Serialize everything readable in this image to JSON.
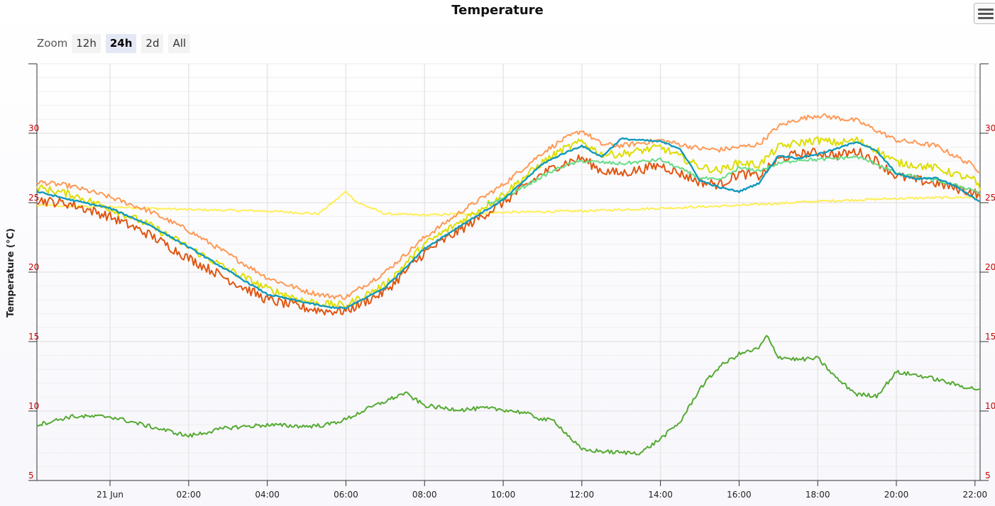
{
  "header": {
    "title": "Temperature",
    "menu_icon": "hamburger-menu-icon"
  },
  "zoom": {
    "label": "Zoom",
    "buttons": [
      "12h",
      "24h",
      "2d",
      "All"
    ],
    "active": "24h"
  },
  "chart_data": {
    "type": "line",
    "title": "Temperature",
    "ylabel": "Temperature (°C)",
    "xlabel": "",
    "ylim": [
      5,
      35
    ],
    "y_ticks": [
      5,
      10,
      15,
      20,
      25,
      30
    ],
    "x_range_hours": [
      -1.86,
      22.13
    ],
    "x_ticks": [
      {
        "label": "21 Jun",
        "hour": 0
      },
      {
        "label": "02:00",
        "hour": 2
      },
      {
        "label": "04:00",
        "hour": 4
      },
      {
        "label": "06:00",
        "hour": 6
      },
      {
        "label": "08:00",
        "hour": 8
      },
      {
        "label": "10:00",
        "hour": 10
      },
      {
        "label": "12:00",
        "hour": 12
      },
      {
        "label": "14:00",
        "hour": 14
      },
      {
        "label": "16:00",
        "hour": 16
      },
      {
        "label": "18:00",
        "hour": 18
      },
      {
        "label": "20:00",
        "hour": 20
      },
      {
        "label": "22:00",
        "hour": 22
      }
    ],
    "grid": true,
    "tick_color": "#cc0000",
    "series": [
      {
        "color": "#ffee55",
        "x": [
          -1.86,
          0,
          2,
          4,
          5.3,
          5.75,
          6,
          6.3,
          7,
          8,
          10,
          12,
          14,
          16,
          18,
          20,
          22,
          22.13
        ],
        "y": [
          24.8,
          24.7,
          24.5,
          24.4,
          24.2,
          25.2,
          25.8,
          25.0,
          24.2,
          24.1,
          24.3,
          24.4,
          24.6,
          24.8,
          25.1,
          25.3,
          25.4,
          25.5
        ]
      },
      {
        "color": "#ff9955",
        "x": [
          -1.86,
          -1,
          0,
          1,
          2,
          3,
          4,
          5,
          5.5,
          6,
          7,
          8,
          9,
          10,
          11,
          11.5,
          12,
          12.5,
          13,
          14,
          15,
          15.5,
          16,
          16.5,
          17,
          17.5,
          18,
          18.5,
          19,
          19.5,
          20,
          21,
          22,
          22.13
        ],
        "y": [
          26.5,
          26.2,
          25.4,
          24.4,
          23.0,
          21.3,
          19.6,
          18.6,
          18.3,
          18.2,
          20.0,
          22.5,
          24.5,
          26.3,
          28.6,
          29.5,
          30.2,
          29.2,
          29.1,
          29.5,
          28.9,
          28.8,
          29.0,
          29.2,
          30.5,
          31.0,
          31.3,
          31.1,
          30.9,
          30.2,
          29.5,
          29.1,
          27.6,
          27.2
        ]
      },
      {
        "color": "#e05510",
        "x": [
          -1.86,
          -1,
          0,
          1,
          2,
          3,
          4,
          5,
          5.5,
          6,
          7,
          8,
          9,
          10,
          11,
          11.5,
          12,
          12.5,
          13,
          14,
          15,
          15.5,
          16,
          16.5,
          17,
          17.5,
          18,
          18.5,
          19,
          19.5,
          20,
          21,
          22,
          22.13
        ],
        "y": [
          25.2,
          24.9,
          24.0,
          22.7,
          21.0,
          19.5,
          18.0,
          17.4,
          17.2,
          17.2,
          18.6,
          21.4,
          23.2,
          25.0,
          27.1,
          27.8,
          28.2,
          27.3,
          27.1,
          27.7,
          26.5,
          26.3,
          27.1,
          26.9,
          28.1,
          28.5,
          28.6,
          28.4,
          28.7,
          28.0,
          26.9,
          26.4,
          25.7,
          25.4
        ]
      },
      {
        "color": "#dddd00",
        "x": [
          -1.86,
          -1,
          0,
          1,
          2,
          3,
          4,
          5,
          5.5,
          6,
          7,
          8,
          9,
          10,
          11,
          11.5,
          12,
          12.5,
          13,
          14,
          15,
          15.5,
          16,
          16.5,
          17,
          17.5,
          18,
          18.5,
          19,
          19.5,
          20,
          21,
          22,
          22.13
        ],
        "y": [
          26.1,
          25.6,
          24.6,
          23.4,
          21.8,
          20.2,
          18.8,
          17.9,
          17.7,
          17.6,
          19.1,
          22.0,
          23.8,
          25.6,
          27.9,
          28.8,
          29.4,
          28.5,
          28.5,
          29.0,
          27.6,
          27.3,
          27.9,
          27.7,
          29.0,
          29.3,
          29.5,
          29.3,
          29.5,
          28.8,
          27.9,
          27.5,
          26.6,
          25.9
        ]
      },
      {
        "color": "#66dd88",
        "x": [
          9.6,
          10,
          11,
          11.5,
          12,
          12.5,
          13,
          14,
          15,
          15.5,
          16,
          16.5,
          17,
          17.5,
          18,
          18.5,
          19,
          19.5,
          20,
          21,
          22,
          22.13
        ],
        "y": [
          24.9,
          25.3,
          26.9,
          27.6,
          28.0,
          27.9,
          27.8,
          28.1,
          26.8,
          26.6,
          27.5,
          27.3,
          27.8,
          28.1,
          28.1,
          28.2,
          28.3,
          27.8,
          27.1,
          26.6,
          25.9,
          25.6
        ]
      },
      {
        "color": "#1199bb",
        "x": [
          -1.86,
          -1,
          0,
          1,
          2,
          3,
          4,
          5,
          5.5,
          6,
          7,
          8,
          9,
          10,
          11,
          11.5,
          12,
          12.5,
          13,
          13.5,
          14,
          14.5,
          15,
          15.5,
          16,
          16.5,
          17,
          17.5,
          18,
          18.5,
          19,
          19.5,
          20,
          20.5,
          21,
          21.5,
          22,
          22.13
        ],
        "y": [
          25.8,
          25.2,
          24.6,
          23.4,
          21.8,
          20.1,
          18.4,
          17.8,
          17.5,
          17.4,
          18.9,
          21.7,
          23.5,
          25.2,
          27.8,
          28.5,
          29.1,
          28.3,
          29.6,
          29.5,
          29.4,
          28.9,
          26.6,
          26.1,
          25.8,
          26.4,
          28.4,
          28.2,
          28.5,
          28.9,
          29.4,
          28.7,
          27.1,
          26.7,
          26.8,
          26.2,
          25.3,
          25.1
        ]
      },
      {
        "color": "#55aa33",
        "x": [
          -1.86,
          -1,
          0,
          1,
          2,
          3,
          4,
          5,
          5.5,
          6,
          6.5,
          7,
          7.5,
          8,
          8.5,
          9,
          9.5,
          10,
          10.5,
          11,
          11.3,
          11.6,
          12,
          12.5,
          13,
          13.5,
          14,
          14.5,
          15,
          15.5,
          16,
          16.5,
          16.7,
          17,
          17.5,
          18,
          18.5,
          19,
          19.5,
          20,
          20.5,
          21,
          21.5,
          22,
          22.13
        ],
        "y": [
          9.0,
          9.6,
          9.6,
          8.9,
          8.2,
          8.8,
          9.0,
          8.9,
          9.0,
          9.4,
          10.1,
          10.7,
          11.3,
          10.4,
          10.2,
          10.1,
          10.2,
          10.1,
          9.9,
          9.4,
          9.3,
          8.4,
          7.2,
          7.1,
          7.0,
          7.0,
          8.0,
          9.2,
          11.6,
          13.2,
          14.1,
          14.5,
          15.4,
          13.9,
          13.7,
          13.8,
          12.3,
          11.2,
          11.1,
          12.8,
          12.6,
          12.3,
          11.9,
          11.6,
          11.6
        ]
      }
    ]
  }
}
